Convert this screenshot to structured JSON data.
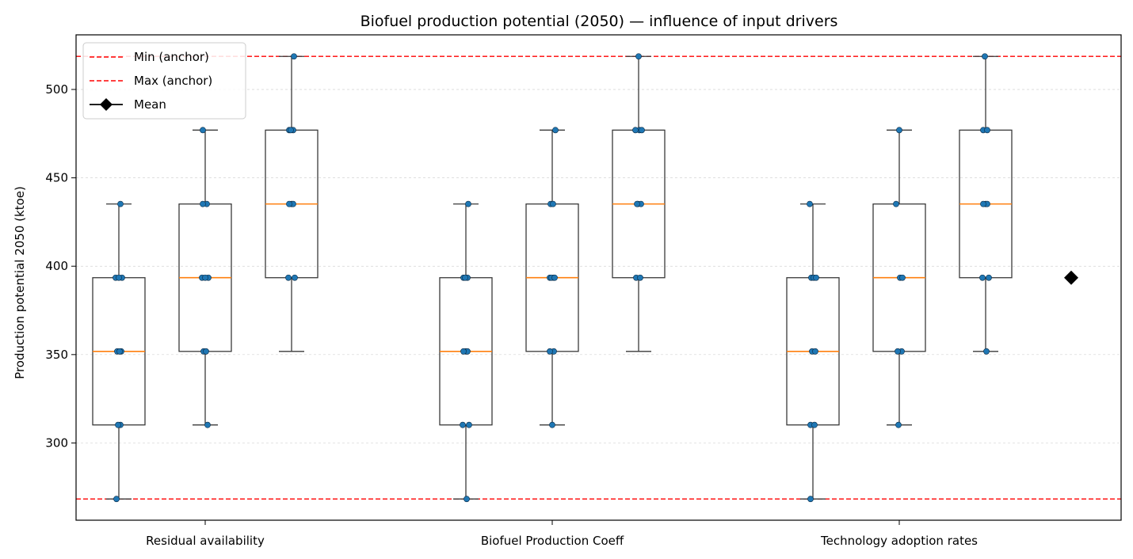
{
  "chart_data": {
    "type": "box",
    "title": "Biofuel production potential (2050) — influence of input drivers",
    "xlabel": "",
    "ylabel": "Production potential 2050 (ktoe)",
    "ylim": [
      256.3,
      530.9
    ],
    "yticks": [
      300,
      350,
      400,
      450,
      500
    ],
    "grid": "y",
    "legend_position": "top-left",
    "categories": [
      "Residual availability",
      "Biofuel Production Coeff",
      "Technology adoption rates"
    ],
    "boxes_per_category": 3,
    "groups": [
      {
        "category": "Residual availability",
        "boxes": [
          {
            "whisker_low": 268.3,
            "q1": 310.2,
            "median": 351.8,
            "q3": 393.5,
            "whisker_high": 435.2,
            "points": [
              268.3,
              310.2,
              310.2,
              351.8,
              351.8,
              351.8,
              393.5,
              393.5,
              393.5,
              435.2
            ]
          },
          {
            "whisker_low": 310.2,
            "q1": 351.8,
            "median": 393.5,
            "q3": 435.2,
            "whisker_high": 477.0,
            "points": [
              310.2,
              351.8,
              351.8,
              393.5,
              393.5,
              393.5,
              435.2,
              435.2,
              477.0
            ]
          },
          {
            "whisker_low": 351.8,
            "q1": 393.5,
            "median": 435.2,
            "q3": 477.0,
            "whisker_high": 518.7,
            "points": [
              393.5,
              393.5,
              435.2,
              435.2,
              435.2,
              477.0,
              477.0,
              477.0,
              518.7
            ]
          }
        ]
      },
      {
        "category": "Biofuel Production Coeff",
        "boxes": [
          {
            "whisker_low": 268.3,
            "q1": 310.2,
            "median": 351.8,
            "q3": 393.5,
            "whisker_high": 435.2,
            "points": [
              268.3,
              310.2,
              310.2,
              351.8,
              351.8,
              351.8,
              393.5,
              393.5,
              393.5,
              435.2
            ]
          },
          {
            "whisker_low": 310.2,
            "q1": 351.8,
            "median": 393.5,
            "q3": 435.2,
            "whisker_high": 477.0,
            "points": [
              310.2,
              351.8,
              351.8,
              393.5,
              393.5,
              393.5,
              393.5,
              435.2,
              435.2,
              477.0
            ]
          },
          {
            "whisker_low": 351.8,
            "q1": 393.5,
            "median": 435.2,
            "q3": 477.0,
            "whisker_high": 518.7,
            "points": [
              393.5,
              393.5,
              435.2,
              435.2,
              435.2,
              477.0,
              477.0,
              477.0,
              518.7
            ]
          }
        ]
      },
      {
        "category": "Technology adoption rates",
        "boxes": [
          {
            "whisker_low": 268.3,
            "q1": 310.2,
            "median": 351.8,
            "q3": 393.5,
            "whisker_high": 435.2,
            "points": [
              268.3,
              310.2,
              310.2,
              351.8,
              351.8,
              393.5,
              393.5,
              393.5,
              435.2
            ]
          },
          {
            "whisker_low": 310.2,
            "q1": 351.8,
            "median": 393.5,
            "q3": 435.2,
            "whisker_high": 477.0,
            "points": [
              310.2,
              351.8,
              351.8,
              393.5,
              393.5,
              435.2,
              477.0
            ]
          },
          {
            "whisker_low": 351.8,
            "q1": 393.5,
            "median": 435.2,
            "q3": 477.0,
            "whisker_high": 518.7,
            "points": [
              351.8,
              393.5,
              393.5,
              435.2,
              435.2,
              435.2,
              477.0,
              477.0,
              518.7
            ]
          }
        ]
      }
    ],
    "reference_lines": [
      {
        "name": "Min (anchor)",
        "value": 268.3,
        "color": "#ff0000",
        "style": "dashed"
      },
      {
        "name": "Max (anchor)",
        "value": 518.7,
        "color": "#ff0000",
        "style": "dashed"
      }
    ],
    "mean_marker": {
      "name": "Mean",
      "value": 393.5,
      "color": "#000000",
      "shape": "diamond"
    },
    "colors": {
      "box": "#3a3a3a",
      "median": "#ff7f0e",
      "points": "#1f77b4",
      "grid": "#d3d3d3"
    }
  }
}
